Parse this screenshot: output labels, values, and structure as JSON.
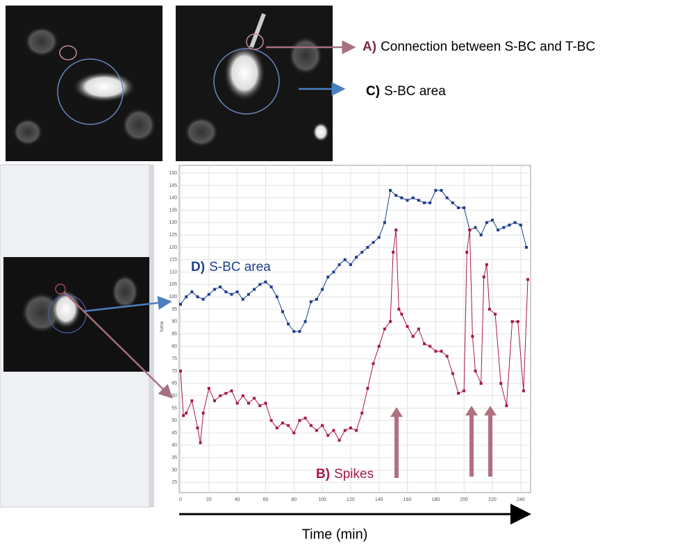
{
  "chart_data": {
    "type": "line",
    "y_label": "luma",
    "x_label": "Time (min)",
    "xlim": [
      0,
      245
    ],
    "ylim": [
      22,
      152
    ],
    "xticks": [
      0,
      20,
      40,
      60,
      80,
      100,
      120,
      140,
      160,
      180,
      200,
      220,
      240
    ],
    "yticks": [
      25,
      30,
      35,
      40,
      45,
      50,
      55,
      60,
      65,
      70,
      75,
      80,
      85,
      90,
      95,
      100,
      105,
      110,
      115,
      120,
      125,
      130,
      135,
      140,
      145,
      150
    ],
    "grid": true,
    "series": [
      {
        "color": "#1f3e8f",
        "x": [
          0,
          4,
          8,
          12,
          16,
          20,
          24,
          28,
          32,
          36,
          40,
          44,
          48,
          52,
          56,
          60,
          64,
          68,
          72,
          76,
          80,
          84,
          88,
          92,
          96,
          100,
          104,
          108,
          112,
          116,
          120,
          124,
          128,
          132,
          136,
          140,
          144,
          148,
          152,
          156,
          160,
          164,
          168,
          172,
          176,
          180,
          184,
          188,
          192,
          196,
          200,
          204,
          208,
          212,
          216,
          220,
          224,
          228,
          232,
          236,
          240,
          244
        ],
        "values": [
          97,
          100,
          102,
          100,
          99,
          101,
          103,
          104,
          102,
          101,
          102,
          99,
          101,
          103,
          105,
          106,
          104,
          100,
          94,
          89,
          86,
          86,
          90,
          98,
          99,
          103,
          108,
          110,
          113,
          115,
          113,
          116,
          118,
          120,
          122,
          124,
          130,
          143,
          141,
          140,
          139,
          140,
          139,
          138,
          138,
          143,
          143,
          140,
          138,
          136,
          136,
          127,
          128,
          125,
          130,
          131,
          127,
          128,
          129,
          130,
          129,
          120
        ]
      },
      {
        "color": "#a8174a",
        "x": [
          0,
          2,
          4,
          8,
          12,
          14,
          16,
          20,
          24,
          28,
          32,
          36,
          40,
          44,
          48,
          52,
          56,
          60,
          64,
          68,
          72,
          76,
          80,
          84,
          88,
          92,
          96,
          100,
          104,
          108,
          112,
          116,
          120,
          124,
          128,
          132,
          136,
          140,
          144,
          148,
          150,
          152,
          154,
          156,
          160,
          164,
          168,
          172,
          176,
          180,
          184,
          188,
          192,
          196,
          200,
          202,
          204,
          206,
          208,
          212,
          214,
          216,
          218,
          222,
          226,
          230,
          234,
          238,
          242,
          245
        ],
        "values": [
          70,
          52,
          53,
          58,
          47,
          41,
          53,
          63,
          58,
          60,
          61,
          62,
          57,
          60,
          57,
          59,
          56,
          57,
          50,
          47,
          49,
          48,
          45,
          50,
          51,
          48,
          46,
          48,
          44,
          46,
          42,
          46,
          47,
          46,
          53,
          63,
          73,
          80,
          87,
          90,
          118,
          127,
          95,
          93,
          88,
          84,
          87,
          81,
          80,
          78,
          78,
          76,
          69,
          61,
          62,
          118,
          127,
          84,
          70,
          65,
          108,
          113,
          95,
          93,
          65,
          56,
          90,
          90,
          62,
          107
        ]
      }
    ],
    "annotations": [
      {
        "label": "A)",
        "text": "Connection between S-BC and T-BC"
      },
      {
        "label": "C)",
        "text": "S-BC area"
      },
      {
        "label": "D)",
        "text": "S-BC area"
      },
      {
        "label": "B)",
        "text": "Spikes"
      }
    ]
  }
}
